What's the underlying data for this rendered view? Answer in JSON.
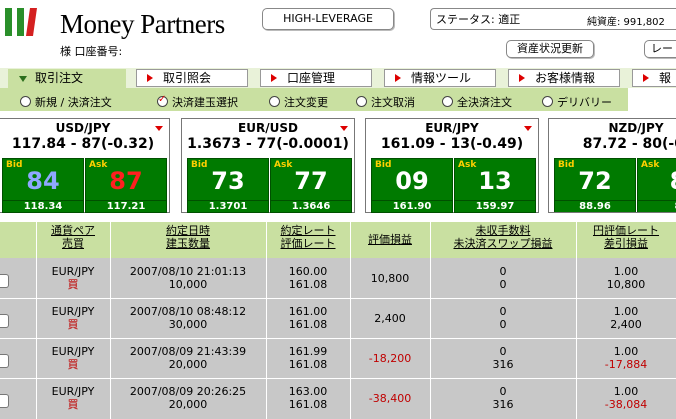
{
  "header": {
    "brand": "Money Partners",
    "account_label": "様 口座番号:",
    "high_leverage": "HIGH-LEVERAGE",
    "status": "ステータス: 適正",
    "assets": "純資産: 991,802",
    "refresh_button": "資産状況更新",
    "rate_button": "レート"
  },
  "nav": {
    "tabs": [
      "取引注文",
      "取引照会",
      "口座管理",
      "情報ツール",
      "お客様情報",
      "報"
    ],
    "sub_items": [
      "新規 / 決済注文",
      "決済建玉選択",
      "注文変更",
      "注文取消",
      "全決済注文",
      "デリバリー"
    ]
  },
  "panels": [
    {
      "pair": "USD/JPY",
      "rate": "117.84 - 87(-0.32)",
      "bid": "84",
      "ask": "87",
      "bid_color": "#8fa8ff",
      "ask_color": "#ff2020",
      "low": "118.34",
      "high": "117.21"
    },
    {
      "pair": "EUR/USD",
      "rate": "1.3673 - 77(-0.0001)",
      "bid": "73",
      "ask": "77",
      "bid_color": "#ffffff",
      "ask_color": "#ffffff",
      "low": "1.3701",
      "high": "1.3646"
    },
    {
      "pair": "EUR/JPY",
      "rate": "161.09 - 13(-0.49)",
      "bid": "09",
      "ask": "13",
      "bid_color": "#ffffff",
      "ask_color": "#ffffff",
      "low": "161.90",
      "high": "159.97"
    },
    {
      "pair": "NZD/JPY",
      "rate": "87.72 - 80(-0.",
      "bid": "72",
      "ask": "8",
      "bid_color": "#ffffff",
      "ask_color": "#ffffff",
      "low": "88.96",
      "high": "8"
    }
  ],
  "panel_labels": {
    "bid": "Bid",
    "ask": "Ask"
  },
  "table": {
    "headers": [
      [
        "通貨ペア",
        "売買"
      ],
      [
        "約定日時",
        "建玉数量"
      ],
      [
        "約定レート",
        "評価レート"
      ],
      [
        "評価損益"
      ],
      [
        "未収手数料",
        "未決済スワップ損益"
      ],
      [
        "円評価レート",
        "差引損益"
      ]
    ],
    "rows": [
      {
        "pair": "EUR/JPY",
        "side": "買",
        "datetime": "2007/08/10 21:01:13",
        "qty": "10,000",
        "rate1": "160.00",
        "rate2": "161.08",
        "pl": "10,800",
        "fee": "0",
        "swap": "0",
        "yen_rate": "1.00",
        "net": "10,800"
      },
      {
        "pair": "EUR/JPY",
        "side": "買",
        "datetime": "2007/08/10 08:48:12",
        "qty": "30,000",
        "rate1": "161.00",
        "rate2": "161.08",
        "pl": "2,400",
        "fee": "0",
        "swap": "0",
        "yen_rate": "1.00",
        "net": "2,400"
      },
      {
        "pair": "EUR/JPY",
        "side": "買",
        "datetime": "2007/08/09 21:43:39",
        "qty": "20,000",
        "rate1": "161.99",
        "rate2": "161.08",
        "pl": "-18,200",
        "fee": "0",
        "swap": "316",
        "yen_rate": "1.00",
        "net": "-17,884"
      },
      {
        "pair": "EUR/JPY",
        "side": "買",
        "datetime": "2007/08/09 20:26:25",
        "qty": "20,000",
        "rate1": "163.00",
        "rate2": "161.08",
        "pl": "-38,400",
        "fee": "0",
        "swap": "316",
        "yen_rate": "1.00",
        "net": "-38,084"
      }
    ]
  },
  "colors": {
    "nav_green": "#c9e0a1",
    "panel_green": "#007a00",
    "negative": "#c00000"
  }
}
